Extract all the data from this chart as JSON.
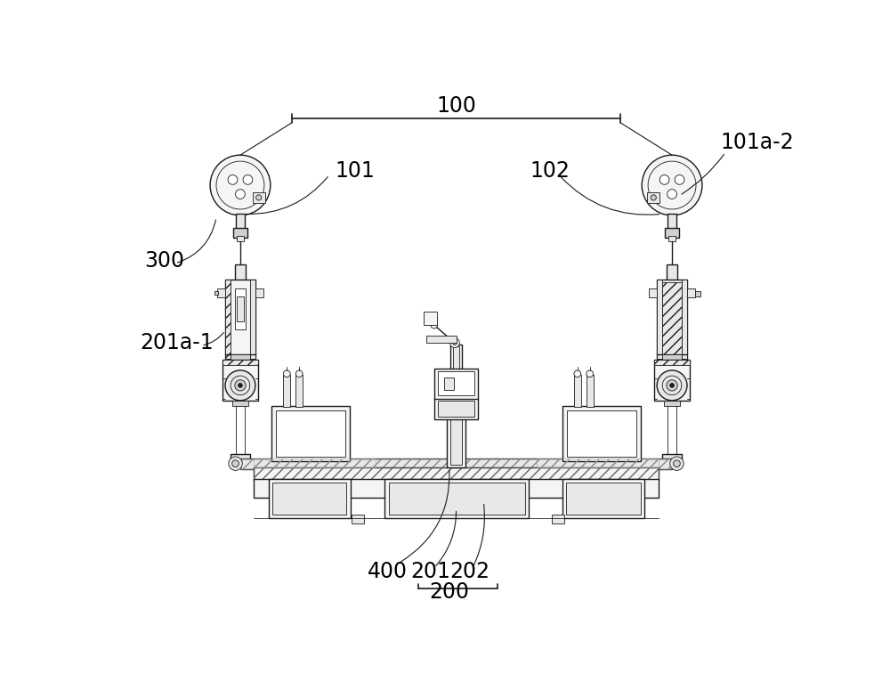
{
  "bg_color": "#ffffff",
  "lc": "#1a1a1a",
  "lw_main": 1.0,
  "lw_thin": 0.6,
  "lw_thick": 1.5,
  "fill_light": "#f5f5f5",
  "fill_mid": "#e8e8e8",
  "fill_dark": "#d0d0d0",
  "fill_white": "#ffffff",
  "hatch_fill": "#eeeeee"
}
